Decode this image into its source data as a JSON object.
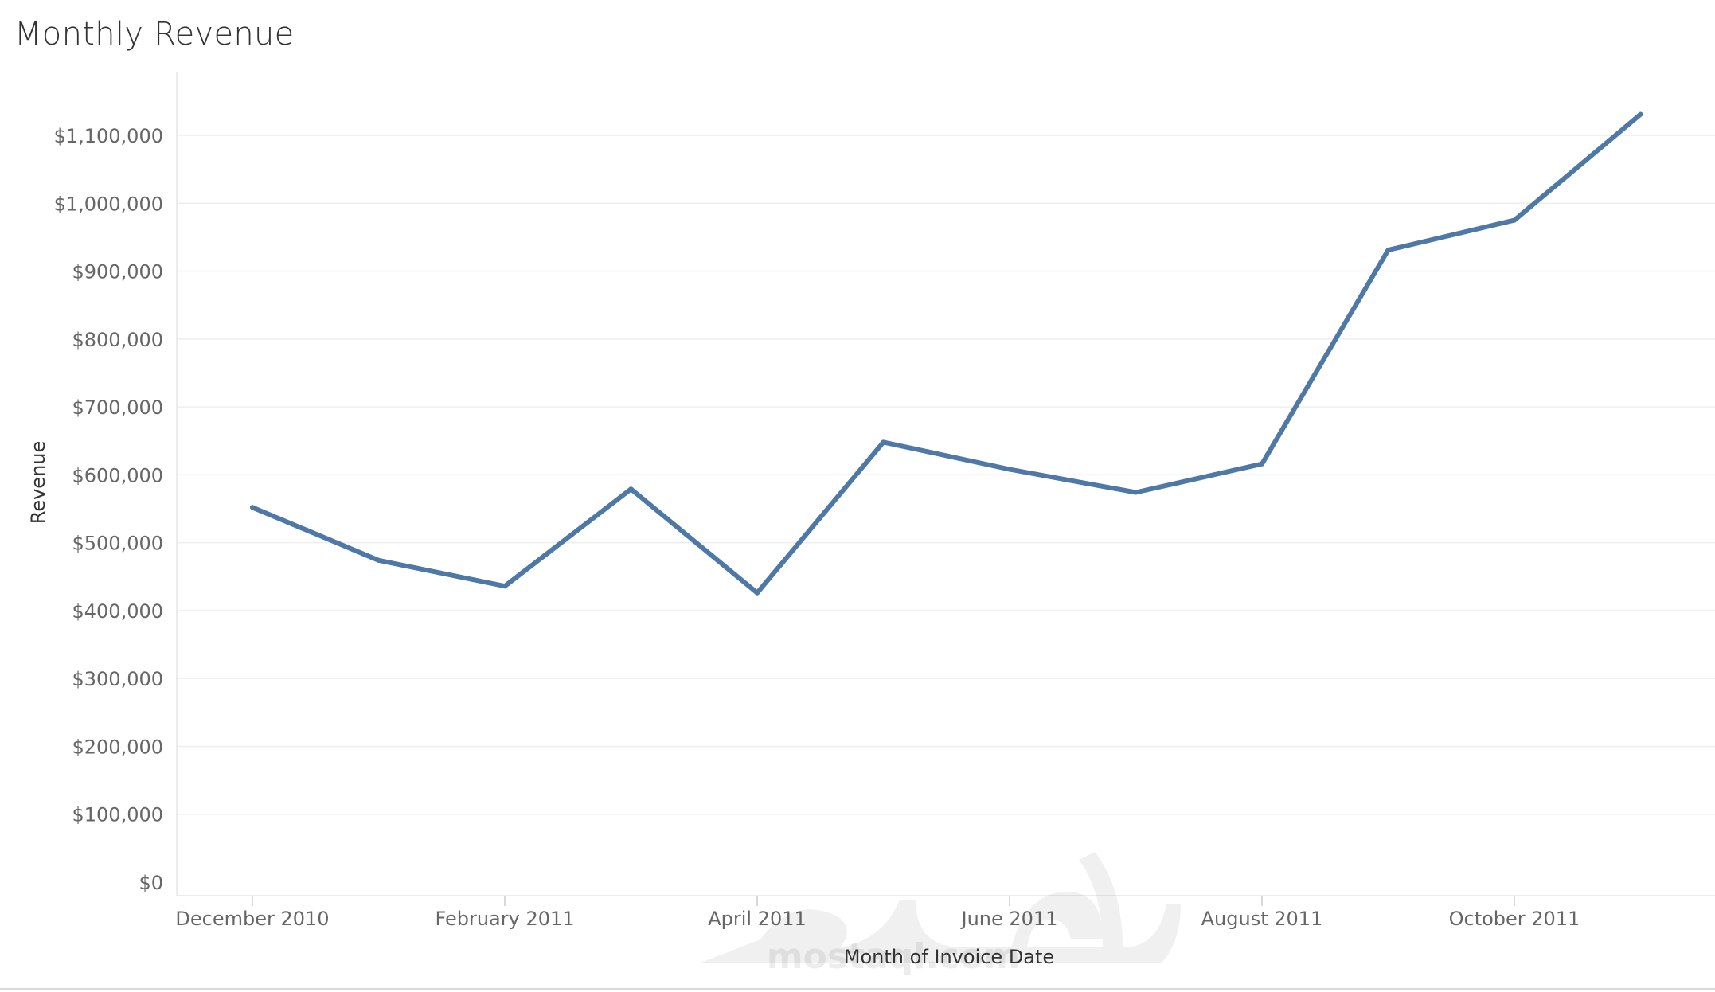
{
  "title": "Monthly Revenue",
  "watermark": {
    "text": "mostaql.com"
  },
  "chart_data": {
    "type": "line",
    "title": "Monthly Revenue",
    "xlabel": "Month of Invoice Date",
    "ylabel": "Revenue",
    "ylim": [
      0,
      1150000
    ],
    "y_ticks": [
      0,
      100000,
      200000,
      300000,
      400000,
      500000,
      600000,
      700000,
      800000,
      900000,
      1000000,
      1100000
    ],
    "y_tick_labels": [
      "$0",
      "$100,000",
      "$200,000",
      "$300,000",
      "$400,000",
      "$500,000",
      "$600,000",
      "$700,000",
      "$800,000",
      "$900,000",
      "$1,000,000",
      "$1,100,000"
    ],
    "x": [
      "2010-12",
      "2011-01",
      "2011-02",
      "2011-03",
      "2011-04",
      "2011-05",
      "2011-06",
      "2011-07",
      "2011-08",
      "2011-09",
      "2011-10",
      "2011-11"
    ],
    "x_tick_labels": [
      {
        "x": "2010-12",
        "label": "December 2010"
      },
      {
        "x": "2011-02",
        "label": "February 2011"
      },
      {
        "x": "2011-04",
        "label": "April 2011"
      },
      {
        "x": "2011-06",
        "label": "June 2011"
      },
      {
        "x": "2011-08",
        "label": "August 2011"
      },
      {
        "x": "2011-10",
        "label": "October 2011"
      }
    ],
    "series": [
      {
        "values": [
          552000,
          474000,
          436000,
          579000,
          426000,
          648000,
          608000,
          574000,
          616000,
          931000,
          975000,
          1131000
        ],
        "color": "#4e79a7"
      }
    ],
    "grid": true,
    "legend": "none"
  }
}
